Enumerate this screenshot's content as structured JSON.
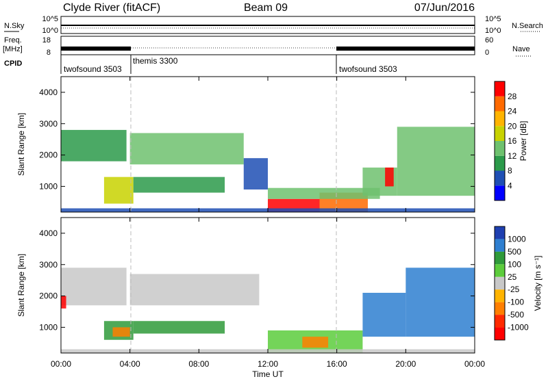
{
  "header": {
    "station": "Clyde River (fitACF)",
    "beam": "Beam 09",
    "date": "07/Jun/2016"
  },
  "noise_panel": {
    "left_label": "N.Sky",
    "right_label": "N.Search",
    "left_ticks": [
      "10^5",
      "10^0"
    ],
    "right_ticks": [
      "10^5",
      "10^0"
    ]
  },
  "freq_panel": {
    "left_label_1": "Freq.",
    "left_label_2": "[MHz]",
    "right_label": "Nave",
    "left_ticks": [
      "18",
      "8"
    ],
    "right_ticks": [
      "60",
      "0"
    ]
  },
  "cpid": {
    "label": "CPID",
    "segments": [
      {
        "name": "twofsound 3503",
        "start_hour": 0
      },
      {
        "name": "themis 3300",
        "start_hour": 4
      },
      {
        "name": "twofsound 3503",
        "start_hour": 16
      }
    ]
  },
  "x_axis": {
    "label": "Time UT",
    "ticks": [
      "00:00",
      "04:00",
      "08:00",
      "12:00",
      "16:00",
      "20:00",
      "00:00"
    ]
  },
  "power_colorbar": {
    "title": "Power [dB]",
    "ticks": [
      "28",
      "24",
      "20",
      "16",
      "12",
      "8",
      "4"
    ],
    "colors": [
      "#0000ff",
      "#1f4fb4",
      "#2b9a4a",
      "#6ec16e",
      "#c8d200",
      "#ffb400",
      "#ff6a00",
      "#ff0000"
    ]
  },
  "velocity_colorbar": {
    "title": "Velocity [m s⁻¹]",
    "ticks": [
      "1000",
      "500",
      "100",
      "25",
      "-25",
      "-100",
      "-500",
      "-1000"
    ],
    "colors": [
      "#1e3fb0",
      "#2e7fd0",
      "#2f9a3a",
      "#5ccc3c",
      "#c8c8c8",
      "#ffb400",
      "#ff7f00",
      "#ff2a00",
      "#ff0000"
    ]
  },
  "chart_data": [
    {
      "type": "heatmap",
      "title": "Power [dB]",
      "xlabel": "Time UT",
      "ylabel": "Slant Range [km]",
      "xlim_hours": [
        0,
        24
      ],
      "ylim_km": [
        180,
        4500
      ],
      "yticks": [
        1000,
        2000,
        3000,
        4000
      ],
      "ytick_labels": [
        "1000",
        "2000",
        "3000",
        "4000"
      ],
      "regions": [
        {
          "t0": 0.0,
          "t1": 3.8,
          "r0": 1800,
          "r1": 2800,
          "level": 2
        },
        {
          "t0": 4.0,
          "t1": 10.6,
          "r0": 1700,
          "r1": 2700,
          "level": 3
        },
        {
          "t0": 2.5,
          "t1": 4.2,
          "r0": 450,
          "r1": 1300,
          "level": 4
        },
        {
          "t0": 4.2,
          "t1": 9.5,
          "r0": 800,
          "r1": 1300,
          "level": 2
        },
        {
          "t0": 10.6,
          "t1": 12.0,
          "r0": 900,
          "r1": 1900,
          "level": 1
        },
        {
          "t0": 12.0,
          "t1": 15.0,
          "r0": 180,
          "r1": 600,
          "level": 7
        },
        {
          "t0": 15.0,
          "t1": 17.8,
          "r0": 180,
          "r1": 800,
          "level": 6
        },
        {
          "t0": 12.0,
          "t1": 18.5,
          "r0": 600,
          "r1": 950,
          "level": 3
        },
        {
          "t0": 17.5,
          "t1": 19.5,
          "r0": 700,
          "r1": 1600,
          "level": 3
        },
        {
          "t0": 18.8,
          "t1": 19.3,
          "r0": 1000,
          "r1": 1600,
          "level": 7
        },
        {
          "t0": 19.5,
          "t1": 24.0,
          "r0": 700,
          "r1": 2900,
          "level": 3
        },
        {
          "t0": 0.0,
          "t1": 24.0,
          "r0": 180,
          "r1": 300,
          "level": 1
        }
      ]
    },
    {
      "type": "heatmap",
      "title": "Velocity [m s⁻¹]",
      "xlabel": "Time UT",
      "ylabel": "Slant Range [km]",
      "xlim_hours": [
        0,
        24
      ],
      "ylim_km": [
        180,
        4500
      ],
      "yticks": [
        1000,
        2000,
        3000,
        4000
      ],
      "ytick_labels": [
        "1000",
        "2000",
        "3000",
        "4000"
      ],
      "regions": [
        {
          "t0": 0.0,
          "t1": 3.8,
          "r0": 1700,
          "r1": 2900,
          "level": 4
        },
        {
          "t0": 4.0,
          "t1": 11.5,
          "r0": 1700,
          "r1": 2700,
          "level": 4
        },
        {
          "t0": 0.0,
          "t1": 0.3,
          "r0": 1600,
          "r1": 2000,
          "level": 8
        },
        {
          "t0": 2.5,
          "t1": 4.2,
          "r0": 600,
          "r1": 1200,
          "level": 2
        },
        {
          "t0": 3.0,
          "t1": 4.0,
          "r0": 700,
          "r1": 1000,
          "level": 6
        },
        {
          "t0": 4.2,
          "t1": 9.5,
          "r0": 800,
          "r1": 1200,
          "level": 2
        },
        {
          "t0": 12.0,
          "t1": 17.5,
          "r0": 180,
          "r1": 900,
          "level": 3
        },
        {
          "t0": 14.0,
          "t1": 15.5,
          "r0": 350,
          "r1": 700,
          "level": 6
        },
        {
          "t0": 17.5,
          "t1": 20.0,
          "r0": 700,
          "r1": 2100,
          "level": 1
        },
        {
          "t0": 20.0,
          "t1": 24.0,
          "r0": 700,
          "r1": 2900,
          "level": 1
        },
        {
          "t0": 0.0,
          "t1": 24.0,
          "r0": 180,
          "r1": 300,
          "level": 4
        }
      ]
    }
  ]
}
